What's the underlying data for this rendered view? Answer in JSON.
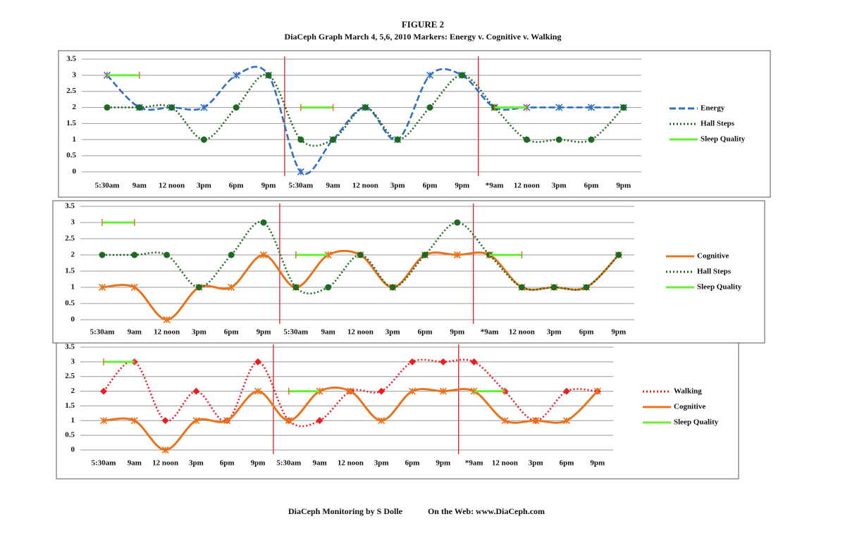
{
  "figure": {
    "title": "FIGURE 2",
    "subtitle": "DiaCeph Graph March 4, 5,6, 2010 Markers: Energy v. Cognitive v. Walking"
  },
  "footer": {
    "left": "DiaCeph Monitoring by S Dolle",
    "right": "On the Web: www.DiaCeph.com"
  },
  "chart_data": [
    {
      "type": "line",
      "legend": "right",
      "grid": true,
      "categories": [
        "5:30am",
        "9am",
        "12 noon",
        "3pm",
        "6pm",
        "9pm",
        "5:30am",
        "9am",
        "12 noon",
        "3pm",
        "6pm",
        "9pm",
        "*9am",
        "12 noon",
        "3pm",
        "6pm",
        "9pm"
      ],
      "ylim": [
        0,
        3.5
      ],
      "yticks": [
        0,
        0.5,
        1,
        1.5,
        2,
        2.5,
        3,
        3.5
      ],
      "series": [
        {
          "name": "Energy",
          "color": "#2f6fc6",
          "style": "dashed",
          "marker": "x",
          "values": [
            3,
            2,
            2,
            2,
            3,
            3,
            0,
            1,
            2,
            1,
            3,
            3,
            2,
            2,
            2,
            2,
            2
          ]
        },
        {
          "name": "Hall Steps",
          "color": "#1f6a22",
          "style": "dotted",
          "marker": "circle",
          "values": [
            2,
            2,
            2,
            1,
            2,
            3,
            1,
            1,
            2,
            1,
            2,
            3,
            2,
            1,
            1,
            1,
            2
          ]
        },
        {
          "name": "Sleep Quality",
          "color": "#66ee33",
          "style": "solid",
          "marker": "tick",
          "values": [
            3,
            3,
            null,
            null,
            null,
            null,
            2,
            2,
            null,
            null,
            null,
            null,
            2,
            2,
            null,
            null,
            null
          ]
        }
      ]
    },
    {
      "type": "line",
      "legend": "right",
      "grid": true,
      "categories": [
        "5:30am",
        "9am",
        "12 noon",
        "3pm",
        "6pm",
        "9pm",
        "5:30am",
        "9am",
        "12 noon",
        "3pm",
        "6pm",
        "9pm",
        "*9am",
        "12 noon",
        "3pm",
        "6pm",
        "9pm"
      ],
      "ylim": [
        0,
        3.5
      ],
      "yticks": [
        0,
        0.5,
        1,
        1.5,
        2,
        2.5,
        3,
        3.5
      ],
      "series": [
        {
          "name": "Cognitive",
          "color": "#e8731c",
          "style": "solid",
          "marker": "x",
          "values": [
            1,
            1,
            0,
            1,
            1,
            2,
            1,
            2,
            2,
            1,
            2,
            2,
            2,
            1,
            1,
            1,
            2
          ]
        },
        {
          "name": "Hall Steps",
          "color": "#1f6a22",
          "style": "dotted",
          "marker": "circle",
          "values": [
            2,
            2,
            2,
            1,
            2,
            3,
            1,
            1,
            2,
            1,
            2,
            3,
            2,
            1,
            1,
            1,
            2
          ]
        },
        {
          "name": "Sleep Quality",
          "color": "#66ee33",
          "style": "solid",
          "marker": "tick",
          "values": [
            3,
            3,
            null,
            null,
            null,
            null,
            2,
            2,
            null,
            null,
            null,
            null,
            2,
            2,
            null,
            null,
            null
          ]
        }
      ]
    },
    {
      "type": "line",
      "legend": "right",
      "grid": true,
      "categories": [
        "5:30am",
        "9am",
        "12 noon",
        "3pm",
        "6pm",
        "9pm",
        "5:30am",
        "9am",
        "12 noon",
        "3pm",
        "6pm",
        "9pm",
        "*9am",
        "12 noon",
        "3pm",
        "6pm",
        "9pm"
      ],
      "ylim": [
        0,
        3.5
      ],
      "yticks": [
        0,
        0.5,
        1,
        1.5,
        2,
        2.5,
        3,
        3.5
      ],
      "series": [
        {
          "name": "Walking",
          "color": "#ee1c1c",
          "style": "dotted",
          "marker": "diamond",
          "values": [
            2,
            3,
            1,
            2,
            1,
            3,
            1,
            1,
            2,
            2,
            3,
            3,
            3,
            2,
            1,
            2,
            2
          ]
        },
        {
          "name": "Cognitive",
          "color": "#e8731c",
          "style": "solid",
          "marker": "x",
          "values": [
            1,
            1,
            0,
            1,
            1,
            2,
            1,
            2,
            2,
            1,
            2,
            2,
            2,
            1,
            1,
            1,
            2
          ]
        },
        {
          "name": "Sleep Quality",
          "color": "#66ee33",
          "style": "solid",
          "marker": "tick",
          "values": [
            3,
            3,
            null,
            null,
            null,
            null,
            2,
            2,
            null,
            null,
            null,
            null,
            2,
            2,
            null,
            null,
            null
          ]
        }
      ]
    }
  ]
}
